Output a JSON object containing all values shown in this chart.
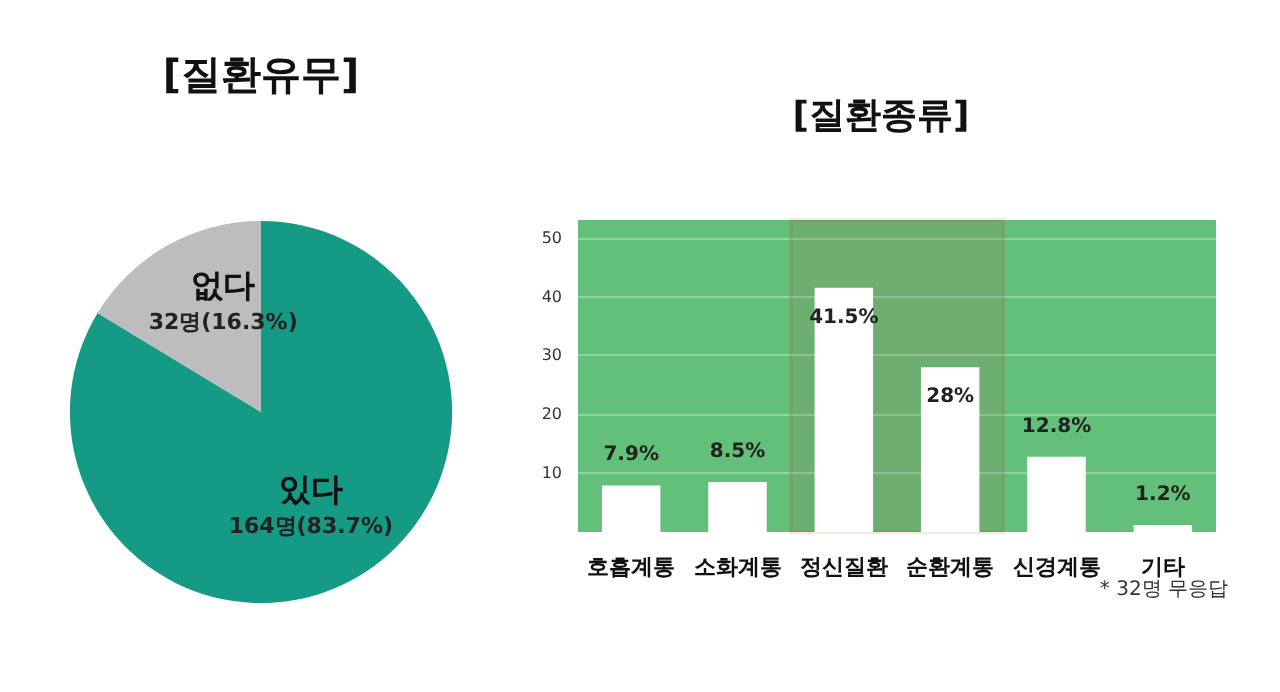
{
  "chart_data": [
    {
      "type": "pie",
      "title": "[질환유무]",
      "categories": [
        "있다",
        "없다"
      ],
      "values": [
        164,
        32
      ],
      "colors": [
        "#159a86",
        "#bdbdbd"
      ],
      "value_labels": [
        "164명(83.7%)",
        "32명(16.3%)"
      ]
    },
    {
      "type": "bar",
      "title": "[질환종류]",
      "categories": [
        "호흡계통",
        "소화계통",
        "정신질환",
        "순환계통",
        "신경계통",
        "기타"
      ],
      "values": [
        7.9,
        8.5,
        41.5,
        28,
        12.8,
        1.2
      ],
      "color": "#ffffff",
      "value_labels": [
        "7.9%",
        "8.5%",
        "41.5%",
        "28%",
        "12.8%",
        "1.2%"
      ],
      "ylim": [
        0,
        53
      ],
      "yticks": [
        10,
        20,
        30,
        40,
        50
      ],
      "grid": "y",
      "bands": [
        {
          "axis": "x",
          "from": "정신질환",
          "to": "순환계통",
          "color": "#b33a26"
        }
      ],
      "annotations": [
        "* 32명 무응답"
      ]
    }
  ]
}
